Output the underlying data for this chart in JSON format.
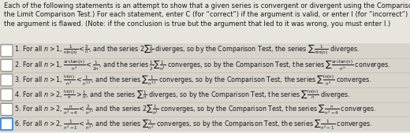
{
  "bg_color": "#e8e5df",
  "header_text": "Each of the following statements is an attempt to show that a given series is convergent or divergent using the Comparison Test (NOT\nthe Limit Comparison Test.) For each statement, enter C (for “correct”) if the argument is valid, or enter I (for “incorrect”) if any part of\nthe argument is flawed. (Note: if the conclusion is true but the argument that led to it was wrong, you must enter I.)",
  "rows": [
    "1. For all $n>1$, $\\frac{1}{n\\ln(n)}<\\frac{2}{n}$, and the series $2\\sum\\frac{1}{n}$ diverges, so by the Comparison Test, the series $\\sum\\frac{1}{n\\ln(n)}$ diverges.",
    "2. For all $n>1$, $\\frac{\\arctan(n)}{n^3}<\\frac{1}{2n}$, and the series $\\frac{1}{2}\\sum\\frac{1}{n^2}$ converges, so by the Comparison Test, the series $\\sum\\frac{\\arctan(n)}{n^3}$ converges.",
    "3. For all $n>1$, $\\frac{\\ln(n)}{n^2}<\\frac{1}{n^{1.2}}$, and the series $\\sum\\frac{1}{n^{1.2}}$ converges, so by the Comparison Test, the series $\\sum\\frac{\\ln(n)}{n^2}$ converges.",
    "4. For all $n>2$, $\\frac{\\ln(n)}{n}>\\frac{1}{n}$, and the series $\\sum\\frac{1}{n}$ diverges, so by the Comparison Test, the series $\\sum\\frac{\\ln(n)}{n}$ diverges.",
    "5. For all $n>2$, $\\frac{n}{n^2-4}<\\frac{2}{n^2}$, and the series $2\\sum\\frac{1}{n^2}$ converges, so by the Comparison Test, the series $\\sum\\frac{n}{n^2-4}$ converges.",
    "6. For all $n>2$, $\\frac{1}{n^2-1}<\\frac{1}{n^2}$, and the series $\\sum\\frac{1}{n^2}$ converges, so by the Comparison Test, the series $\\sum\\frac{1}{n^2-1}$ converges."
  ],
  "row_fontsize": 5.8,
  "header_fontsize": 6.0,
  "text_color": "#1a1a1a",
  "box_color_normal": "#888880",
  "box_color_selected": "#4a90d9",
  "checkbox_selected_row": 5,
  "row_bg": "#d8d4cc"
}
